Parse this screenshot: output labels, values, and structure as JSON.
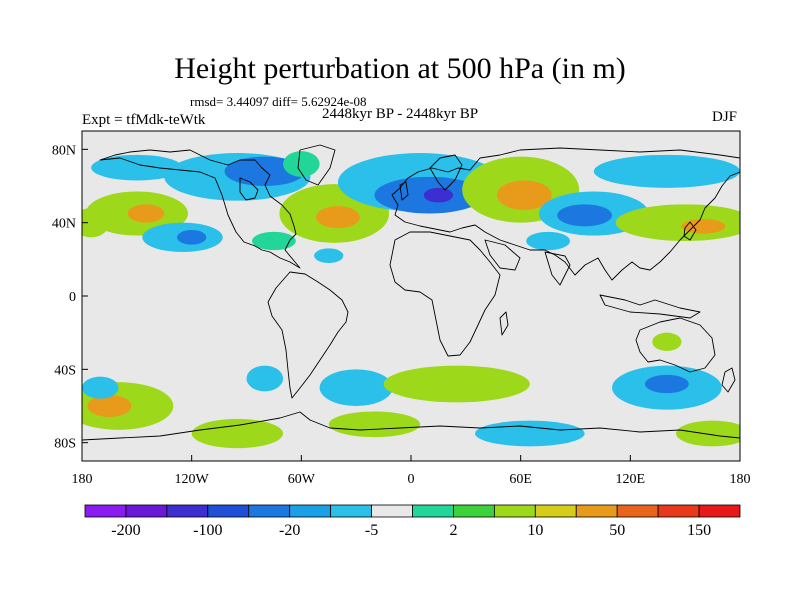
{
  "title": "Height perturbation at 500 hPa (in m)",
  "stats": "rmsd= 3.44097 diff= 5.62924e-08",
  "period": "2448kyr BP - 2448kyr BP",
  "experiment": "Expt = tfMdk-teWtk",
  "season": "DJF",
  "axes": {
    "lat_labels": [
      {
        "text": "80N",
        "lat": 80
      },
      {
        "text": "40N",
        "lat": 40
      },
      {
        "text": "0",
        "lat": 0
      },
      {
        "text": "40S",
        "lat": -40
      },
      {
        "text": "80S",
        "lat": -80
      }
    ],
    "lon_labels": [
      {
        "text": "180",
        "lon": -180
      },
      {
        "text": "120W",
        "lon": -120
      },
      {
        "text": "60W",
        "lon": -60
      },
      {
        "text": "0",
        "lon": 0
      },
      {
        "text": "60E",
        "lon": 60
      },
      {
        "text": "120E",
        "lon": 120
      },
      {
        "text": "180",
        "lon": 180
      }
    ]
  },
  "colorbar": {
    "colors": [
      "#8a1cf2",
      "#6a18d8",
      "#3c2ed0",
      "#1f4fd6",
      "#1c78e0",
      "#1aa0e6",
      "#2ac0ea",
      "#e8e8e8",
      "#22d69a",
      "#3cd23c",
      "#9ed81a",
      "#d6cc1a",
      "#e89a1a",
      "#e8641a",
      "#e83a1a",
      "#e81818"
    ],
    "labels": [
      {
        "text": "-200",
        "boundary": 1
      },
      {
        "text": "-100",
        "boundary": 3
      },
      {
        "text": "-20",
        "boundary": 5
      },
      {
        "text": "-5",
        "boundary": 7
      },
      {
        "text": "2",
        "boundary": 9
      },
      {
        "text": "10",
        "boundary": 11
      },
      {
        "text": "50",
        "boundary": 13
      },
      {
        "text": "150",
        "boundary": 15
      }
    ]
  },
  "anomalies": [
    {
      "lon": -150,
      "lat": 45,
      "rx": 28,
      "ry": 12,
      "value": 10
    },
    {
      "lon": -145,
      "lat": 45,
      "rx": 10,
      "ry": 5,
      "value": 50
    },
    {
      "lon": -125,
      "lat": 32,
      "rx": 22,
      "ry": 8,
      "value": -5
    },
    {
      "lon": -120,
      "lat": 32,
      "rx": 8,
      "ry": 4,
      "value": -20
    },
    {
      "lon": -95,
      "lat": 65,
      "rx": 40,
      "ry": 13,
      "value": -5
    },
    {
      "lon": -80,
      "lat": 68,
      "rx": 22,
      "ry": 8,
      "value": -20
    },
    {
      "lon": -42,
      "lat": 45,
      "rx": 30,
      "ry": 16,
      "value": 10
    },
    {
      "lon": -40,
      "lat": 43,
      "rx": 12,
      "ry": 6,
      "value": 50
    },
    {
      "lon": -75,
      "lat": 30,
      "rx": 12,
      "ry": 5,
      "value": 2
    },
    {
      "lon": -45,
      "lat": 22,
      "rx": 8,
      "ry": 4,
      "value": -5
    },
    {
      "lon": 5,
      "lat": 62,
      "rx": 45,
      "ry": 16,
      "value": -5
    },
    {
      "lon": 10,
      "lat": 55,
      "rx": 30,
      "ry": 10,
      "value": -20
    },
    {
      "lon": 15,
      "lat": 55,
      "rx": 8,
      "ry": 4,
      "value": -100
    },
    {
      "lon": 60,
      "lat": 58,
      "rx": 32,
      "ry": 18,
      "value": 10
    },
    {
      "lon": 62,
      "lat": 55,
      "rx": 15,
      "ry": 8,
      "value": 50
    },
    {
      "lon": 100,
      "lat": 45,
      "rx": 30,
      "ry": 12,
      "value": -5
    },
    {
      "lon": 95,
      "lat": 44,
      "rx": 15,
      "ry": 6,
      "value": -20
    },
    {
      "lon": 150,
      "lat": 40,
      "rx": 38,
      "ry": 10,
      "value": 10
    },
    {
      "lon": 160,
      "lat": 38,
      "rx": 12,
      "ry": 4,
      "value": 50
    },
    {
      "lon": -175,
      "lat": 40,
      "rx": 10,
      "ry": 8,
      "value": 10
    },
    {
      "lon": 140,
      "lat": 68,
      "rx": 40,
      "ry": 9,
      "value": -5
    },
    {
      "lon": -150,
      "lat": 70,
      "rx": 25,
      "ry": 7,
      "value": -5
    },
    {
      "lon": 75,
      "lat": 30,
      "rx": 12,
      "ry": 5,
      "value": -5
    },
    {
      "lon": -60,
      "lat": 72,
      "rx": 10,
      "ry": 7,
      "value": 2
    },
    {
      "lon": -160,
      "lat": -60,
      "rx": 30,
      "ry": 13,
      "value": 10
    },
    {
      "lon": -165,
      "lat": -60,
      "rx": 12,
      "ry": 6,
      "value": 50
    },
    {
      "lon": -95,
      "lat": -75,
      "rx": 25,
      "ry": 8,
      "value": 10
    },
    {
      "lon": -80,
      "lat": -45,
      "rx": 10,
      "ry": 7,
      "value": -5
    },
    {
      "lon": -30,
      "lat": -50,
      "rx": 20,
      "ry": 10,
      "value": -5
    },
    {
      "lon": -20,
      "lat": -70,
      "rx": 25,
      "ry": 7,
      "value": 10
    },
    {
      "lon": 25,
      "lat": -48,
      "rx": 40,
      "ry": 10,
      "value": 10
    },
    {
      "lon": 65,
      "lat": -75,
      "rx": 30,
      "ry": 7,
      "value": -5
    },
    {
      "lon": 140,
      "lat": -50,
      "rx": 30,
      "ry": 12,
      "value": -5
    },
    {
      "lon": 140,
      "lat": -48,
      "rx": 12,
      "ry": 5,
      "value": -20
    },
    {
      "lon": 165,
      "lat": -75,
      "rx": 20,
      "ry": 7,
      "value": 10
    },
    {
      "lon": -170,
      "lat": -50,
      "rx": 10,
      "ry": 6,
      "value": -5
    },
    {
      "lon": 140,
      "lat": -25,
      "rx": 8,
      "ry": 5,
      "value": 10
    }
  ]
}
